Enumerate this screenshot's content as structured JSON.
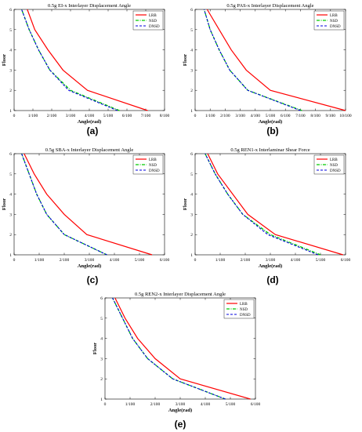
{
  "figure": {
    "captions": [
      "(a)",
      "(b)",
      "(c)",
      "(d)",
      "(e)"
    ]
  },
  "chart_data": [
    {
      "type": "line",
      "title": "0.5g EI-x Interlayer Displacement Angle",
      "xlabel": "Angle(rad)",
      "ylabel": "Floor",
      "xlim": [
        0,
        0.08
      ],
      "ylim": [
        1,
        6
      ],
      "xticks": [
        0,
        0.01,
        0.02,
        0.03,
        0.04,
        0.05,
        0.06,
        0.07,
        0.08
      ],
      "xtick_labels": [
        "0",
        "1/100",
        "2/100",
        "3/100",
        "4/100",
        "5/100",
        "6/100",
        "7/100",
        "8/100"
      ],
      "yticks": [
        1,
        2,
        3,
        4,
        5,
        6
      ],
      "ytick_labels": [
        "1",
        "2",
        "3",
        "4",
        "5",
        "6"
      ],
      "legend": "top-right",
      "series": [
        {
          "name": "LRB",
          "color": "#ff0000",
          "style": "solid",
          "x": [
            0.071,
            0.039,
            0.026,
            0.018,
            0.011,
            0.007
          ],
          "y": [
            1,
            2,
            3,
            4,
            5,
            6
          ]
        },
        {
          "name": "NSD",
          "color": "#00cc00",
          "style": "dashdot",
          "x": [
            0.056,
            0.03,
            0.019,
            0.013,
            0.008,
            0.004
          ],
          "y": [
            1,
            2,
            3,
            4,
            5,
            6
          ]
        },
        {
          "name": "DNSD",
          "color": "#0000dd",
          "style": "dashed",
          "x": [
            0.055,
            0.029,
            0.019,
            0.013,
            0.008,
            0.004
          ],
          "y": [
            1,
            2,
            3,
            4,
            5,
            6
          ]
        }
      ]
    },
    {
      "type": "line",
      "title": "0.5g PAS-x Interlayer Displacement Angle",
      "xlabel": "Angle(rad)",
      "ylabel": "Floor",
      "xlim": [
        0,
        0.1
      ],
      "ylim": [
        1,
        6
      ],
      "xticks": [
        0,
        0.01,
        0.02,
        0.03,
        0.04,
        0.05,
        0.06,
        0.07,
        0.08,
        0.09,
        0.1
      ],
      "xtick_labels": [
        "0",
        "1/100",
        "2/100",
        "3/100",
        "4/100",
        "5/100",
        "6/100",
        "7/100",
        "8/100",
        "9/100",
        "10/100"
      ],
      "yticks": [
        1,
        2,
        3,
        4,
        5,
        6
      ],
      "ytick_labels": [
        "1",
        "2",
        "3",
        "4",
        "5",
        "6"
      ],
      "legend": "top-right",
      "series": [
        {
          "name": "LRB",
          "color": "#ff0000",
          "style": "solid",
          "x": [
            0.1,
            0.05,
            0.034,
            0.024,
            0.016,
            0.008
          ],
          "y": [
            1,
            2,
            3,
            4,
            5,
            6
          ]
        },
        {
          "name": "NSD",
          "color": "#00cc00",
          "style": "dashdot",
          "x": [
            0.071,
            0.035,
            0.023,
            0.016,
            0.01,
            0.006
          ],
          "y": [
            1,
            2,
            3,
            4,
            5,
            6
          ]
        },
        {
          "name": "DNSD",
          "color": "#0000dd",
          "style": "dashed",
          "x": [
            0.07,
            0.035,
            0.023,
            0.016,
            0.01,
            0.006
          ],
          "y": [
            1,
            2,
            3,
            4,
            5,
            6
          ]
        }
      ]
    },
    {
      "type": "line",
      "title": "0.5g SBA-x Interlayer Displacement Angle",
      "xlabel": "Angle(rad)",
      "ylabel": "Floor",
      "xlim": [
        0,
        0.06
      ],
      "ylim": [
        1,
        6
      ],
      "xticks": [
        0,
        0.01,
        0.02,
        0.03,
        0.04,
        0.05,
        0.06
      ],
      "xtick_labels": [
        "0",
        "1/100",
        "2/100",
        "3/100",
        "4/100",
        "5/100",
        "6/100"
      ],
      "yticks": [
        1,
        2,
        3,
        4,
        5,
        6
      ],
      "ytick_labels": [
        "1",
        "2",
        "3",
        "4",
        "5",
        "6"
      ],
      "legend": "top-right",
      "series": [
        {
          "name": "LRB",
          "color": "#ff0000",
          "style": "solid",
          "x": [
            0.055,
            0.029,
            0.02,
            0.013,
            0.008,
            0.004
          ],
          "y": [
            1,
            2,
            3,
            4,
            5,
            6
          ]
        },
        {
          "name": "NSD",
          "color": "#00cc00",
          "style": "dashdot",
          "x": [
            0.037,
            0.02,
            0.013,
            0.009,
            0.006,
            0.003
          ],
          "y": [
            1,
            2,
            3,
            4,
            5,
            6
          ]
        },
        {
          "name": "DNSD",
          "color": "#0000dd",
          "style": "dashed",
          "x": [
            0.037,
            0.02,
            0.013,
            0.009,
            0.006,
            0.003
          ],
          "y": [
            1,
            2,
            3,
            4,
            5,
            6
          ]
        }
      ]
    },
    {
      "type": "line",
      "title": "0.5g REN1-x Interlaminar Shear Force",
      "xlabel": "Angle(rad)",
      "ylabel": "Floor",
      "xlim": [
        0,
        0.06
      ],
      "ylim": [
        1,
        6
      ],
      "xticks": [
        0,
        0.01,
        0.02,
        0.03,
        0.04,
        0.05,
        0.06
      ],
      "xtick_labels": [
        "0",
        "1/100",
        "2/100",
        "3/100",
        "4/100",
        "5/100",
        "6/100"
      ],
      "yticks": [
        1,
        2,
        3,
        4,
        5,
        6
      ],
      "ytick_labels": [
        "1",
        "2",
        "3",
        "4",
        "5",
        "6"
      ],
      "legend": "top-right",
      "series": [
        {
          "name": "LRB",
          "color": "#ff0000",
          "style": "solid",
          "x": [
            0.059,
            0.032,
            0.021,
            0.015,
            0.009,
            0.005
          ],
          "y": [
            1,
            2,
            3,
            4,
            5,
            6
          ]
        },
        {
          "name": "NSD",
          "color": "#00cc00",
          "style": "dashdot",
          "x": [
            0.05,
            0.03,
            0.019,
            0.013,
            0.008,
            0.004
          ],
          "y": [
            1,
            2,
            3,
            4,
            5,
            6
          ]
        },
        {
          "name": "DNSD",
          "color": "#0000dd",
          "style": "dashed",
          "x": [
            0.049,
            0.029,
            0.019,
            0.013,
            0.008,
            0.004
          ],
          "y": [
            1,
            2,
            3,
            4,
            5,
            6
          ]
        }
      ]
    },
    {
      "type": "line",
      "title": "0.5g REN2-x Interlayer Displacement Angle",
      "xlabel": "Angle(rad)",
      "ylabel": "Floor",
      "xlim": [
        0,
        0.06
      ],
      "ylim": [
        1,
        6
      ],
      "xticks": [
        0,
        0.01,
        0.02,
        0.03,
        0.04,
        0.05,
        0.06
      ],
      "xtick_labels": [
        "0",
        "1/100",
        "2/100",
        "3/100",
        "4/100",
        "5/100",
        "6/100"
      ],
      "yticks": [
        1,
        2,
        3,
        4,
        5,
        6
      ],
      "ytick_labels": [
        "1",
        "2",
        "3",
        "4",
        "5",
        "6"
      ],
      "legend": "top-right",
      "series": [
        {
          "name": "LRB",
          "color": "#ff0000",
          "style": "solid",
          "x": [
            0.058,
            0.03,
            0.02,
            0.013,
            0.008,
            0.004
          ],
          "y": [
            1,
            2,
            3,
            4,
            5,
            6
          ]
        },
        {
          "name": "NSD",
          "color": "#00cc00",
          "style": "dashdot",
          "x": [
            0.048,
            0.027,
            0.017,
            0.011,
            0.007,
            0.003
          ],
          "y": [
            1,
            2,
            3,
            4,
            5,
            6
          ]
        },
        {
          "name": "DNSD",
          "color": "#0000dd",
          "style": "dashed",
          "x": [
            0.048,
            0.027,
            0.017,
            0.011,
            0.007,
            0.003
          ],
          "y": [
            1,
            2,
            3,
            4,
            5,
            6
          ]
        }
      ]
    }
  ]
}
